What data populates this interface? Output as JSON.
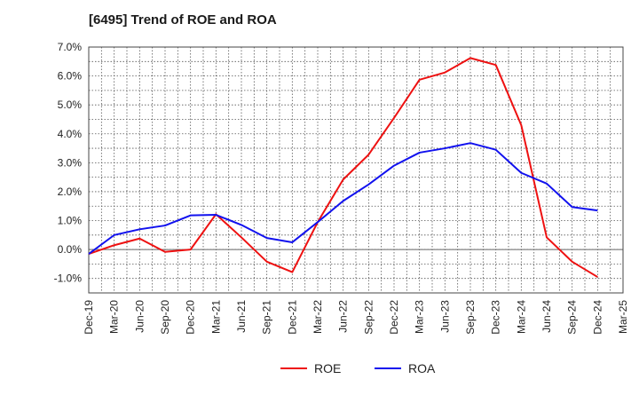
{
  "chart_data": {
    "type": "line",
    "title": "[6495]  Trend of ROE and ROA",
    "xlabel": "",
    "ylabel": "",
    "categories": [
      "Dec-19",
      "Mar-20",
      "Jun-20",
      "Sep-20",
      "Dec-20",
      "Mar-21",
      "Jun-21",
      "Sep-21",
      "Dec-21",
      "Mar-22",
      "Jun-22",
      "Sep-22",
      "Dec-22",
      "Mar-23",
      "Jun-23",
      "Sep-23",
      "Dec-23",
      "Mar-24",
      "Jun-24",
      "Sep-24",
      "Dec-24",
      "Mar-25"
    ],
    "y_tick_labels": [
      "-1.0%",
      "0.0%",
      "1.0%",
      "2.0%",
      "3.0%",
      "4.0%",
      "5.0%",
      "6.0%",
      "7.0%"
    ],
    "ylim": [
      -1.5,
      7.0
    ],
    "grid": true,
    "legend_position": "bottom",
    "series": [
      {
        "name": "ROE",
        "color": "#ee1111",
        "values": [
          -0.15,
          0.15,
          0.38,
          -0.08,
          0.0,
          1.22,
          0.42,
          -0.42,
          -0.78,
          0.95,
          2.42,
          3.28,
          4.55,
          5.87,
          6.12,
          6.62,
          6.38,
          4.3,
          0.42,
          -0.42,
          -0.95,
          null
        ]
      },
      {
        "name": "ROA",
        "color": "#1111ee",
        "values": [
          -0.15,
          0.5,
          0.7,
          0.83,
          1.18,
          1.2,
          0.85,
          0.4,
          0.25,
          0.95,
          1.68,
          2.25,
          2.9,
          3.35,
          3.5,
          3.68,
          3.45,
          2.65,
          2.28,
          1.47,
          1.35,
          null
        ]
      }
    ]
  }
}
